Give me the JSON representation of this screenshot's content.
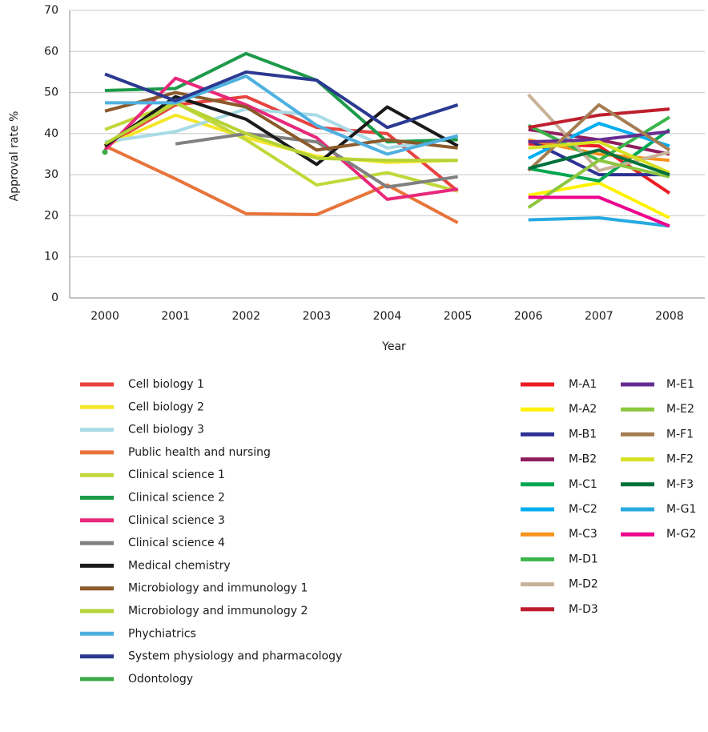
{
  "chart_data": {
    "type": "line",
    "y_label": "Approval rate %",
    "x_label": "Year",
    "categories": [
      "2000",
      "2001",
      "2002",
      "2003",
      "2004",
      "2005",
      "2006",
      "2007",
      "2008"
    ],
    "ylim": [
      0,
      70
    ],
    "yticks": [
      0,
      10,
      20,
      30,
      40,
      50,
      60,
      70
    ],
    "grid": true,
    "series": [
      {
        "name": "Cell biology 1",
        "color": "#e8423f",
        "values": [
          37,
          47,
          49,
          41.5,
          40,
          26,
          null,
          null,
          null
        ]
      },
      {
        "name": "Cell biology 2",
        "color": "#f5e62a",
        "values": [
          37,
          44.5,
          39,
          34.5,
          33,
          33.5,
          null,
          null,
          null
        ]
      },
      {
        "name": "Cell biology 3",
        "color": "#a8dbe6",
        "values": [
          38,
          40.5,
          46,
          44.5,
          36.5,
          39,
          null,
          null,
          null
        ]
      },
      {
        "name": "Public health and nursing",
        "color": "#e8743b",
        "values": [
          37,
          29,
          20.5,
          20.3,
          27.5,
          18.3,
          null,
          null,
          null
        ]
      },
      {
        "name": "Clinical science 1",
        "color": "#c2d83a",
        "values": [
          41,
          47.5,
          38.5,
          27.5,
          30.5,
          26,
          null,
          null,
          null
        ]
      },
      {
        "name": "Clinical science 2",
        "color": "#1d9a4a",
        "values": [
          50.5,
          51,
          59.5,
          53,
          38,
          38.5,
          null,
          null,
          null
        ]
      },
      {
        "name": "Clinical science 3",
        "color": "#e8287a",
        "values": [
          36,
          53.5,
          47,
          39,
          24,
          26.5,
          null,
          null,
          null
        ]
      },
      {
        "name": "Clinical science 4",
        "color": "#808080",
        "values": [
          null,
          37.5,
          40,
          38,
          27,
          29.5,
          null,
          null,
          null
        ]
      },
      {
        "name": "Medical chemistry",
        "color": "#1a1a1a",
        "values": [
          37,
          49,
          43.5,
          32.5,
          46.5,
          37,
          null,
          null,
          null
        ]
      },
      {
        "name": "Microbiology and immunology 1",
        "color": "#8b5a2b",
        "values": [
          45.5,
          50,
          46.5,
          36,
          38.5,
          36.5,
          null,
          null,
          null
        ]
      },
      {
        "name": "Microbiology and immunology 2",
        "color": "#b5d334",
        "values": [
          37.5,
          47.5,
          40,
          34,
          33.5,
          33.5,
          null,
          null,
          null
        ]
      },
      {
        "name": "Phychiatrics",
        "color": "#4fb0e0",
        "values": [
          47.5,
          47.5,
          54,
          42,
          35,
          39.5,
          null,
          null,
          null
        ]
      },
      {
        "name": "System physiology and pharmacology",
        "color": "#2b3990",
        "values": [
          54.5,
          48,
          55,
          53,
          41.5,
          47,
          null,
          null,
          null
        ]
      },
      {
        "name": "Odontology",
        "color": "#3aaa47",
        "values": [
          35.5,
          null,
          null,
          null,
          null,
          null,
          null,
          null,
          null
        ]
      },
      {
        "name": "M-A1",
        "color": "#ed1c24",
        "values": [
          null,
          null,
          null,
          null,
          null,
          null,
          37.5,
          37,
          25.5
        ]
      },
      {
        "name": "M-A2",
        "color": "#fff200",
        "values": [
          null,
          null,
          null,
          null,
          null,
          null,
          25,
          28,
          19.5
        ]
      },
      {
        "name": "M-B1",
        "color": "#2e3192",
        "values": [
          null,
          null,
          null,
          null,
          null,
          null,
          38.5,
          30,
          30
        ]
      },
      {
        "name": "M-B2",
        "color": "#8e1f5e",
        "values": [
          null,
          null,
          null,
          null,
          null,
          null,
          41,
          38.5,
          35
        ]
      },
      {
        "name": "M-C1",
        "color": "#00a651",
        "values": [
          null,
          null,
          null,
          null,
          null,
          null,
          31.5,
          28.5,
          41
        ]
      },
      {
        "name": "M-C2",
        "color": "#00aeef",
        "values": [
          null,
          null,
          null,
          null,
          null,
          null,
          34,
          42.5,
          37
        ]
      },
      {
        "name": "M-C3",
        "color": "#f7941d",
        "values": [
          null,
          null,
          null,
          null,
          null,
          null,
          38.5,
          35,
          33.5
        ]
      },
      {
        "name": "M-D1",
        "color": "#39b54a",
        "values": [
          null,
          null,
          null,
          null,
          null,
          null,
          42,
          33.5,
          44
        ]
      },
      {
        "name": "M-D2",
        "color": "#c7b299",
        "values": [
          null,
          null,
          null,
          null,
          null,
          null,
          49.5,
          31,
          35.5
        ]
      },
      {
        "name": "M-D3",
        "color": "#be1e2d",
        "values": [
          null,
          null,
          null,
          null,
          null,
          null,
          41.5,
          44.5,
          46
        ]
      },
      {
        "name": "M-E1",
        "color": "#662d91",
        "values": [
          null,
          null,
          null,
          null,
          null,
          null,
          38,
          38.5,
          40.5
        ]
      },
      {
        "name": "M-E2",
        "color": "#8dc63f",
        "values": [
          null,
          null,
          null,
          null,
          null,
          null,
          22,
          33.5,
          29.5
        ]
      },
      {
        "name": "M-F1",
        "color": "#a67c52",
        "values": [
          null,
          null,
          null,
          null,
          null,
          null,
          31,
          47,
          36
        ]
      },
      {
        "name": "M-F2",
        "color": "#d7df23",
        "values": [
          null,
          null,
          null,
          null,
          null,
          null,
          36.5,
          38,
          30.5
        ]
      },
      {
        "name": "M-F3",
        "color": "#00703c",
        "values": [
          null,
          null,
          null,
          null,
          null,
          null,
          31.5,
          36,
          30
        ]
      },
      {
        "name": "M-G1",
        "color": "#27aae1",
        "values": [
          null,
          null,
          null,
          null,
          null,
          null,
          19,
          19.5,
          17.5
        ]
      },
      {
        "name": "M-G2",
        "color": "#ec008c",
        "values": [
          null,
          null,
          null,
          null,
          null,
          null,
          24.5,
          24.5,
          17.5
        ]
      }
    ]
  }
}
